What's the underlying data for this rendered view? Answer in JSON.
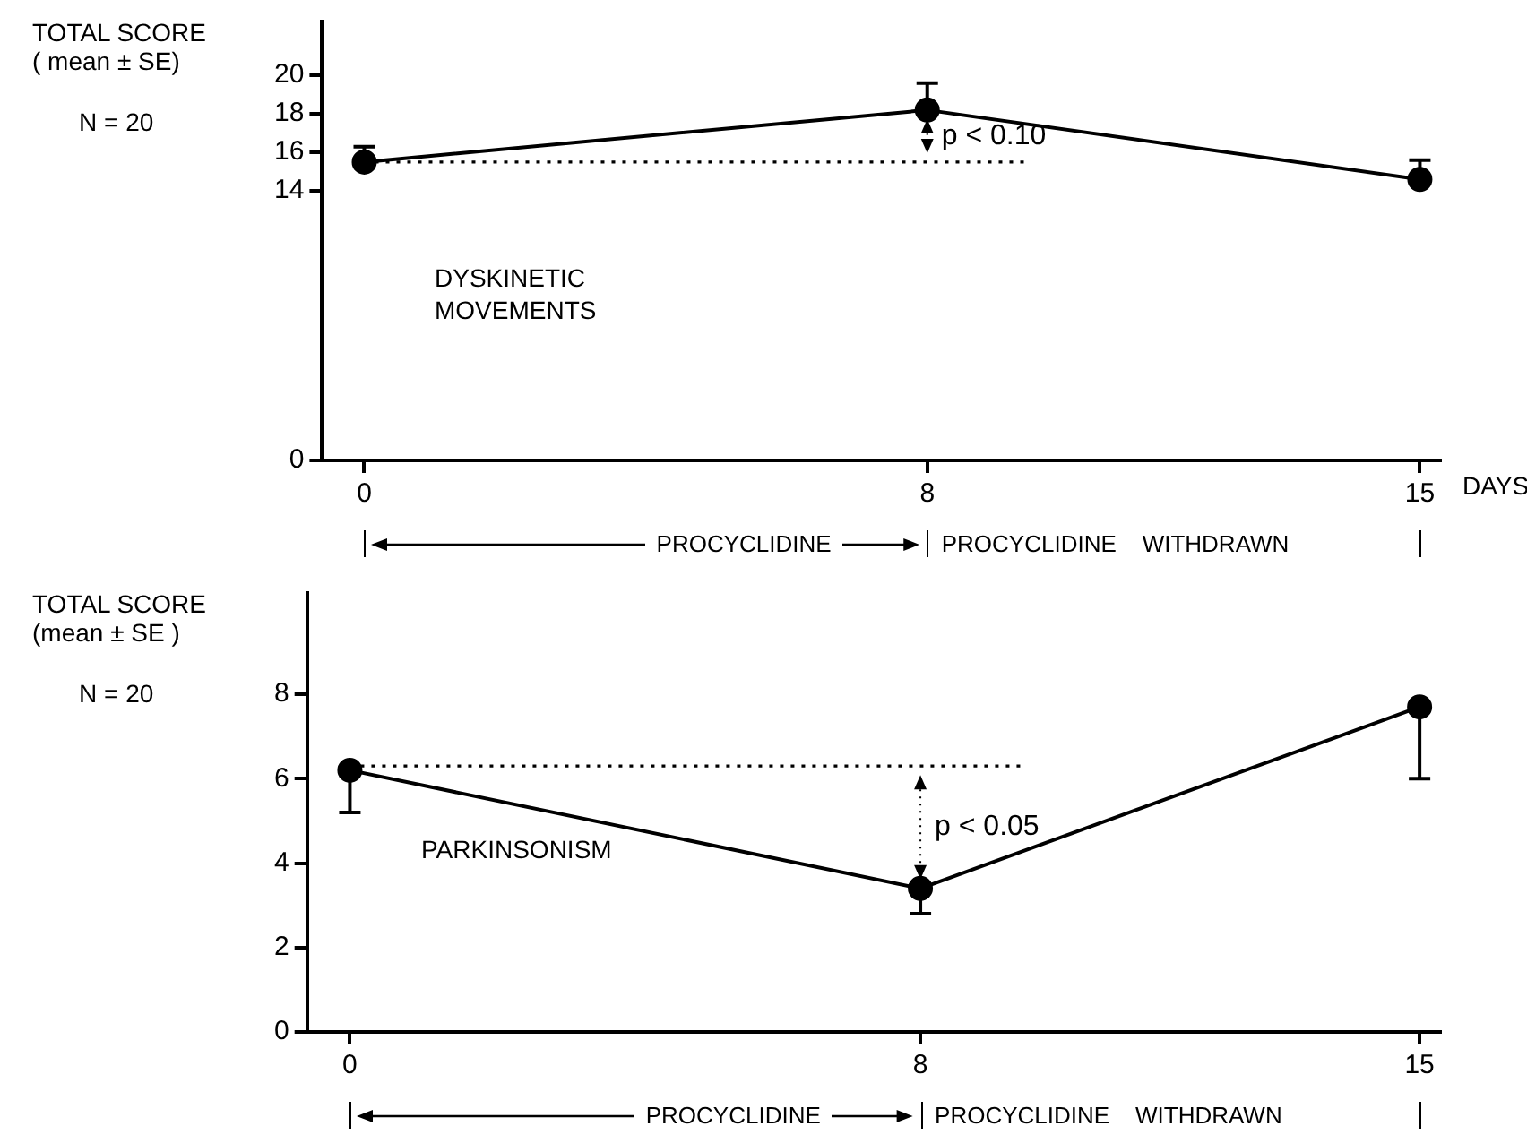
{
  "chart_data": [
    {
      "type": "line",
      "xlabel": "DAYS",
      "ylabel": "TOTAL SCORE\n( mean ± SE)",
      "x": [
        0,
        8,
        15
      ],
      "xlim": [
        -0.6,
        15.3
      ],
      "xticks": [
        0,
        8,
        15
      ],
      "ylim": [
        0,
        22.8
      ],
      "yticks": [
        0,
        14,
        16,
        18,
        20
      ],
      "grid": false,
      "legend": false,
      "marker": "circle",
      "line_style": "solid",
      "series": [
        {
          "color": "#000000",
          "values": [
            15.5,
            18.2,
            14.6
          ],
          "errors": [
            [
              15.5,
              16.3
            ],
            [
              18.2,
              19.6
            ],
            [
              14.6,
              15.6
            ]
          ]
        }
      ],
      "ref_lines": [
        {
          "axis": "y",
          "value": 15.5,
          "line_style": "dotted",
          "color": "#000000"
        }
      ],
      "annotations": [
        "N = 20",
        "DYSKINETIC\nMOVEMENTS",
        "p < 0.10",
        "PROCYCLIDINE",
        "PROCYCLIDINE    WITHDRAWN"
      ]
    },
    {
      "type": "line",
      "ylabel": "TOTAL SCORE\n(mean ± SE )",
      "x": [
        0,
        8,
        15
      ],
      "xlim": [
        -0.6,
        15.3
      ],
      "xticks": [
        0,
        8,
        15
      ],
      "ylim": [
        0,
        10.4
      ],
      "yticks": [
        0,
        2,
        4,
        6,
        8
      ],
      "grid": false,
      "legend": false,
      "marker": "circle",
      "line_style": "solid",
      "series": [
        {
          "color": "#000000",
          "values": [
            6.2,
            3.4,
            7.7
          ],
          "errors": [
            [
              5.2,
              6.2
            ],
            [
              2.8,
              3.4
            ],
            [
              6,
              7.7
            ]
          ]
        }
      ],
      "ref_lines": [
        {
          "axis": "y",
          "value": 6.3,
          "line_style": "dotted",
          "color": "#000000"
        }
      ],
      "annotations": [
        "N = 20",
        "PARKINSONISM",
        "p < 0.05",
        "PROCYCLIDINE",
        "PROCYCLIDINE    WITHDRAWN"
      ]
    }
  ]
}
